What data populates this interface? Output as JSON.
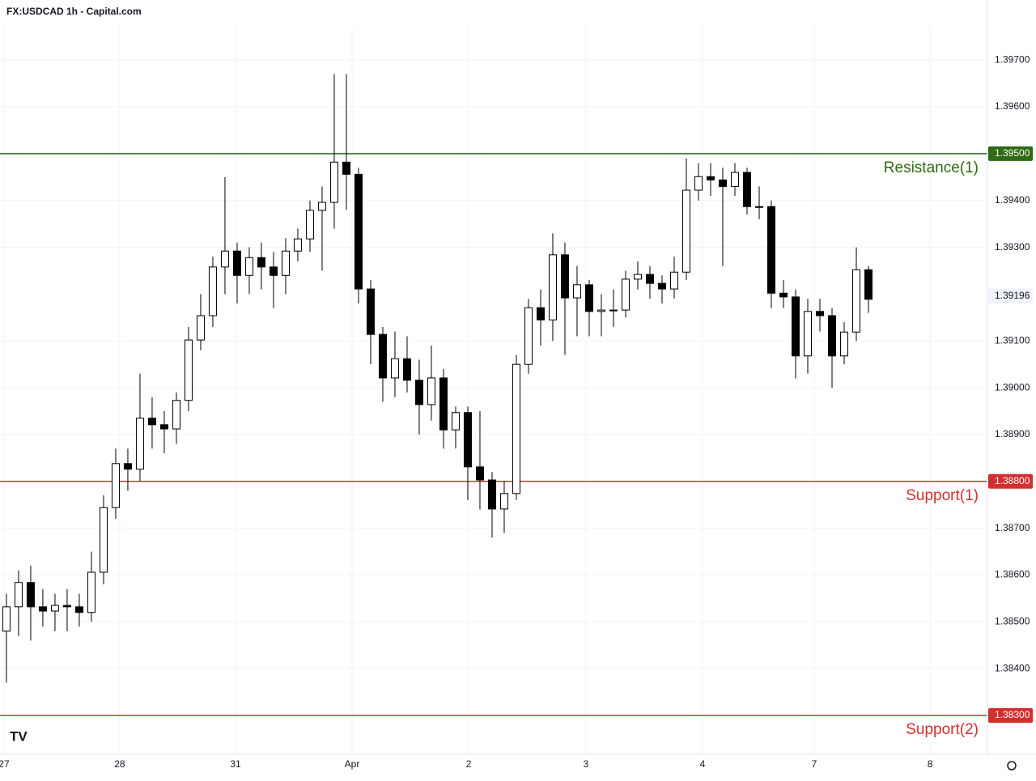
{
  "chart_data": {
    "type": "candlestick",
    "title": "FX:USDCAD 1h - Capital.com",
    "categories": [
      null,
      null,
      null,
      null,
      null,
      null,
      null,
      null,
      null,
      null,
      null,
      null,
      null,
      null,
      null,
      null,
      null,
      null,
      null,
      null,
      null,
      null,
      null,
      null,
      null,
      null,
      null,
      null,
      null,
      null,
      null,
      null,
      null,
      null,
      null,
      null,
      null,
      null,
      null,
      null,
      null,
      null,
      null,
      null,
      null,
      null,
      null,
      null,
      null,
      null,
      null,
      null,
      null,
      null,
      null,
      null,
      null,
      null,
      null,
      null,
      null,
      null,
      null,
      null,
      null,
      null,
      null,
      null,
      null,
      null,
      null,
      null
    ],
    "open": [
      1.3848,
      1.38532,
      1.38584,
      1.38532,
      1.38523,
      1.38535,
      1.38532,
      1.3852,
      1.38606,
      1.38744,
      1.38838,
      1.38826,
      1.38935,
      1.38921,
      1.38912,
      1.38973,
      1.39102,
      1.39154,
      1.39258,
      1.39292,
      1.3924,
      1.39278,
      1.39258,
      1.3924,
      1.39292,
      1.39318,
      1.39379,
      1.39396,
      1.39482,
      1.39456,
      1.39211,
      1.39114,
      1.39021,
      1.39062,
      1.39016,
      1.38964,
      1.39021,
      1.3891,
      1.38947,
      1.38831,
      1.38803,
      1.38741,
      1.38774,
      1.3905,
      1.39171,
      1.39145,
      1.39284,
      1.39192,
      1.3922,
      1.39163,
      1.39166,
      1.39166,
      1.39232,
      1.39242,
      1.39223,
      1.39211,
      1.39247,
      1.39422,
      1.39451,
      1.39444,
      1.3943,
      1.3946,
      1.39387,
      1.39387,
      1.39202,
      1.39194,
      1.39068,
      1.39163,
      1.39154,
      1.39068,
      1.39119,
      1.39252
    ],
    "high": [
      1.3856,
      1.3861,
      1.3862,
      1.3857,
      1.3856,
      1.3857,
      1.3856,
      1.3865,
      1.3877,
      1.3887,
      1.3887,
      1.3903,
      1.3898,
      1.3895,
      1.3899,
      1.3913,
      1.392,
      1.3928,
      1.3945,
      1.3931,
      1.393,
      1.3931,
      1.3929,
      1.3932,
      1.3934,
      1.394,
      1.3943,
      1.3967,
      1.3967,
      1.3947,
      1.3923,
      1.3913,
      1.3912,
      1.3911,
      1.3906,
      1.3909,
      1.3904,
      1.3896,
      1.3896,
      1.3895,
      1.3882,
      1.388,
      1.3907,
      1.3919,
      1.3921,
      1.3933,
      1.3931,
      1.3926,
      1.3923,
      1.392,
      1.3921,
      1.3925,
      1.3927,
      1.3926,
      1.3924,
      1.3928,
      1.3949,
      1.3948,
      1.3948,
      1.3947,
      1.3948,
      1.3947,
      1.3943,
      1.394,
      1.3923,
      1.3921,
      1.3919,
      1.3919,
      1.3917,
      1.3914,
      1.393,
      1.3926
    ],
    "low": [
      1.3837,
      1.3847,
      1.3846,
      1.3849,
      1.3848,
      1.3848,
      1.3849,
      1.385,
      1.3858,
      1.3872,
      1.3878,
      1.388,
      1.3887,
      1.3886,
      1.3888,
      1.3895,
      1.3908,
      1.3913,
      1.392,
      1.3918,
      1.392,
      1.3921,
      1.3917,
      1.392,
      1.3927,
      1.3929,
      1.3925,
      1.3934,
      1.3938,
      1.3918,
      1.3905,
      1.3897,
      1.3898,
      1.3899,
      1.389,
      1.3893,
      1.3887,
      1.3887,
      1.3876,
      1.3874,
      1.3868,
      1.3869,
      1.3876,
      1.3903,
      1.3909,
      1.391,
      1.3907,
      1.3911,
      1.3911,
      1.3911,
      1.3913,
      1.3915,
      1.3921,
      1.3919,
      1.3918,
      1.3919,
      1.3923,
      1.394,
      1.3941,
      1.3926,
      1.3941,
      1.3937,
      1.3936,
      1.3917,
      1.3917,
      1.3902,
      1.3903,
      1.3912,
      1.39,
      1.3905,
      1.391,
      1.3916
    ],
    "close": [
      1.38532,
      1.38584,
      1.38532,
      1.38523,
      1.38535,
      1.38532,
      1.3852,
      1.38606,
      1.38744,
      1.38838,
      1.38826,
      1.38935,
      1.38921,
      1.38912,
      1.38973,
      1.39102,
      1.39154,
      1.39258,
      1.39292,
      1.3924,
      1.39278,
      1.39258,
      1.3924,
      1.39292,
      1.39318,
      1.39379,
      1.39396,
      1.39482,
      1.39456,
      1.39211,
      1.39114,
      1.39021,
      1.39062,
      1.39016,
      1.38964,
      1.39021,
      1.3891,
      1.38947,
      1.38831,
      1.38803,
      1.38741,
      1.38774,
      1.3905,
      1.39171,
      1.39145,
      1.39284,
      1.39192,
      1.3922,
      1.39163,
      1.39166,
      1.39166,
      1.39232,
      1.39242,
      1.39223,
      1.39211,
      1.39247,
      1.39422,
      1.39451,
      1.39444,
      1.3943,
      1.3946,
      1.39387,
      1.39387,
      1.39202,
      1.39194,
      1.39068,
      1.39163,
      1.39154,
      1.39068,
      1.39119,
      1.39252,
      1.39189
    ],
    "up_color": "#ffffff",
    "down_color": "#000000",
    "wick_color": "#000000",
    "xlim": [
      -0.53,
      80.8
    ],
    "xticks": [
      {
        "value": -0.2,
        "label": "27"
      },
      {
        "value": 9.33,
        "label": "28"
      },
      {
        "value": 18.87,
        "label": "31"
      },
      {
        "value": 28.47,
        "label": "Apr"
      },
      {
        "value": 38.07,
        "label": "2"
      },
      {
        "value": 47.73,
        "label": "3"
      },
      {
        "value": 57.33,
        "label": "4"
      },
      {
        "value": 66.53,
        "label": "7"
      },
      {
        "value": 76.07,
        "label": "8"
      }
    ],
    "ylim": [
      1.38217,
      1.39773
    ],
    "yticks": [
      {
        "value": 1.397,
        "label": "1.39700"
      },
      {
        "value": 1.396,
        "label": "1.39600"
      },
      {
        "value": 1.394,
        "label": "1.39400"
      },
      {
        "value": 1.393,
        "label": "1.39300"
      },
      {
        "value": 1.391,
        "label": "1.39100"
      },
      {
        "value": 1.39,
        "label": "1.39000"
      },
      {
        "value": 1.389,
        "label": "1.38900"
      },
      {
        "value": 1.387,
        "label": "1.38700"
      },
      {
        "value": 1.386,
        "label": "1.38600"
      },
      {
        "value": 1.385,
        "label": "1.38500"
      },
      {
        "value": 1.384,
        "label": "1.38400"
      }
    ],
    "grid": true,
    "levels": [
      {
        "name": "Resistance(1)",
        "value": 1.395,
        "label": "1.39500",
        "color": "#2e6b12"
      },
      {
        "name": "Support(1)",
        "value": 1.388,
        "label": "1.38800",
        "color": "#d32f2f"
      },
      {
        "name": "Support(2)",
        "value": 1.383,
        "label": "1.38300",
        "color": "#d32f2f"
      }
    ],
    "last_price": 1.39196
  }
}
